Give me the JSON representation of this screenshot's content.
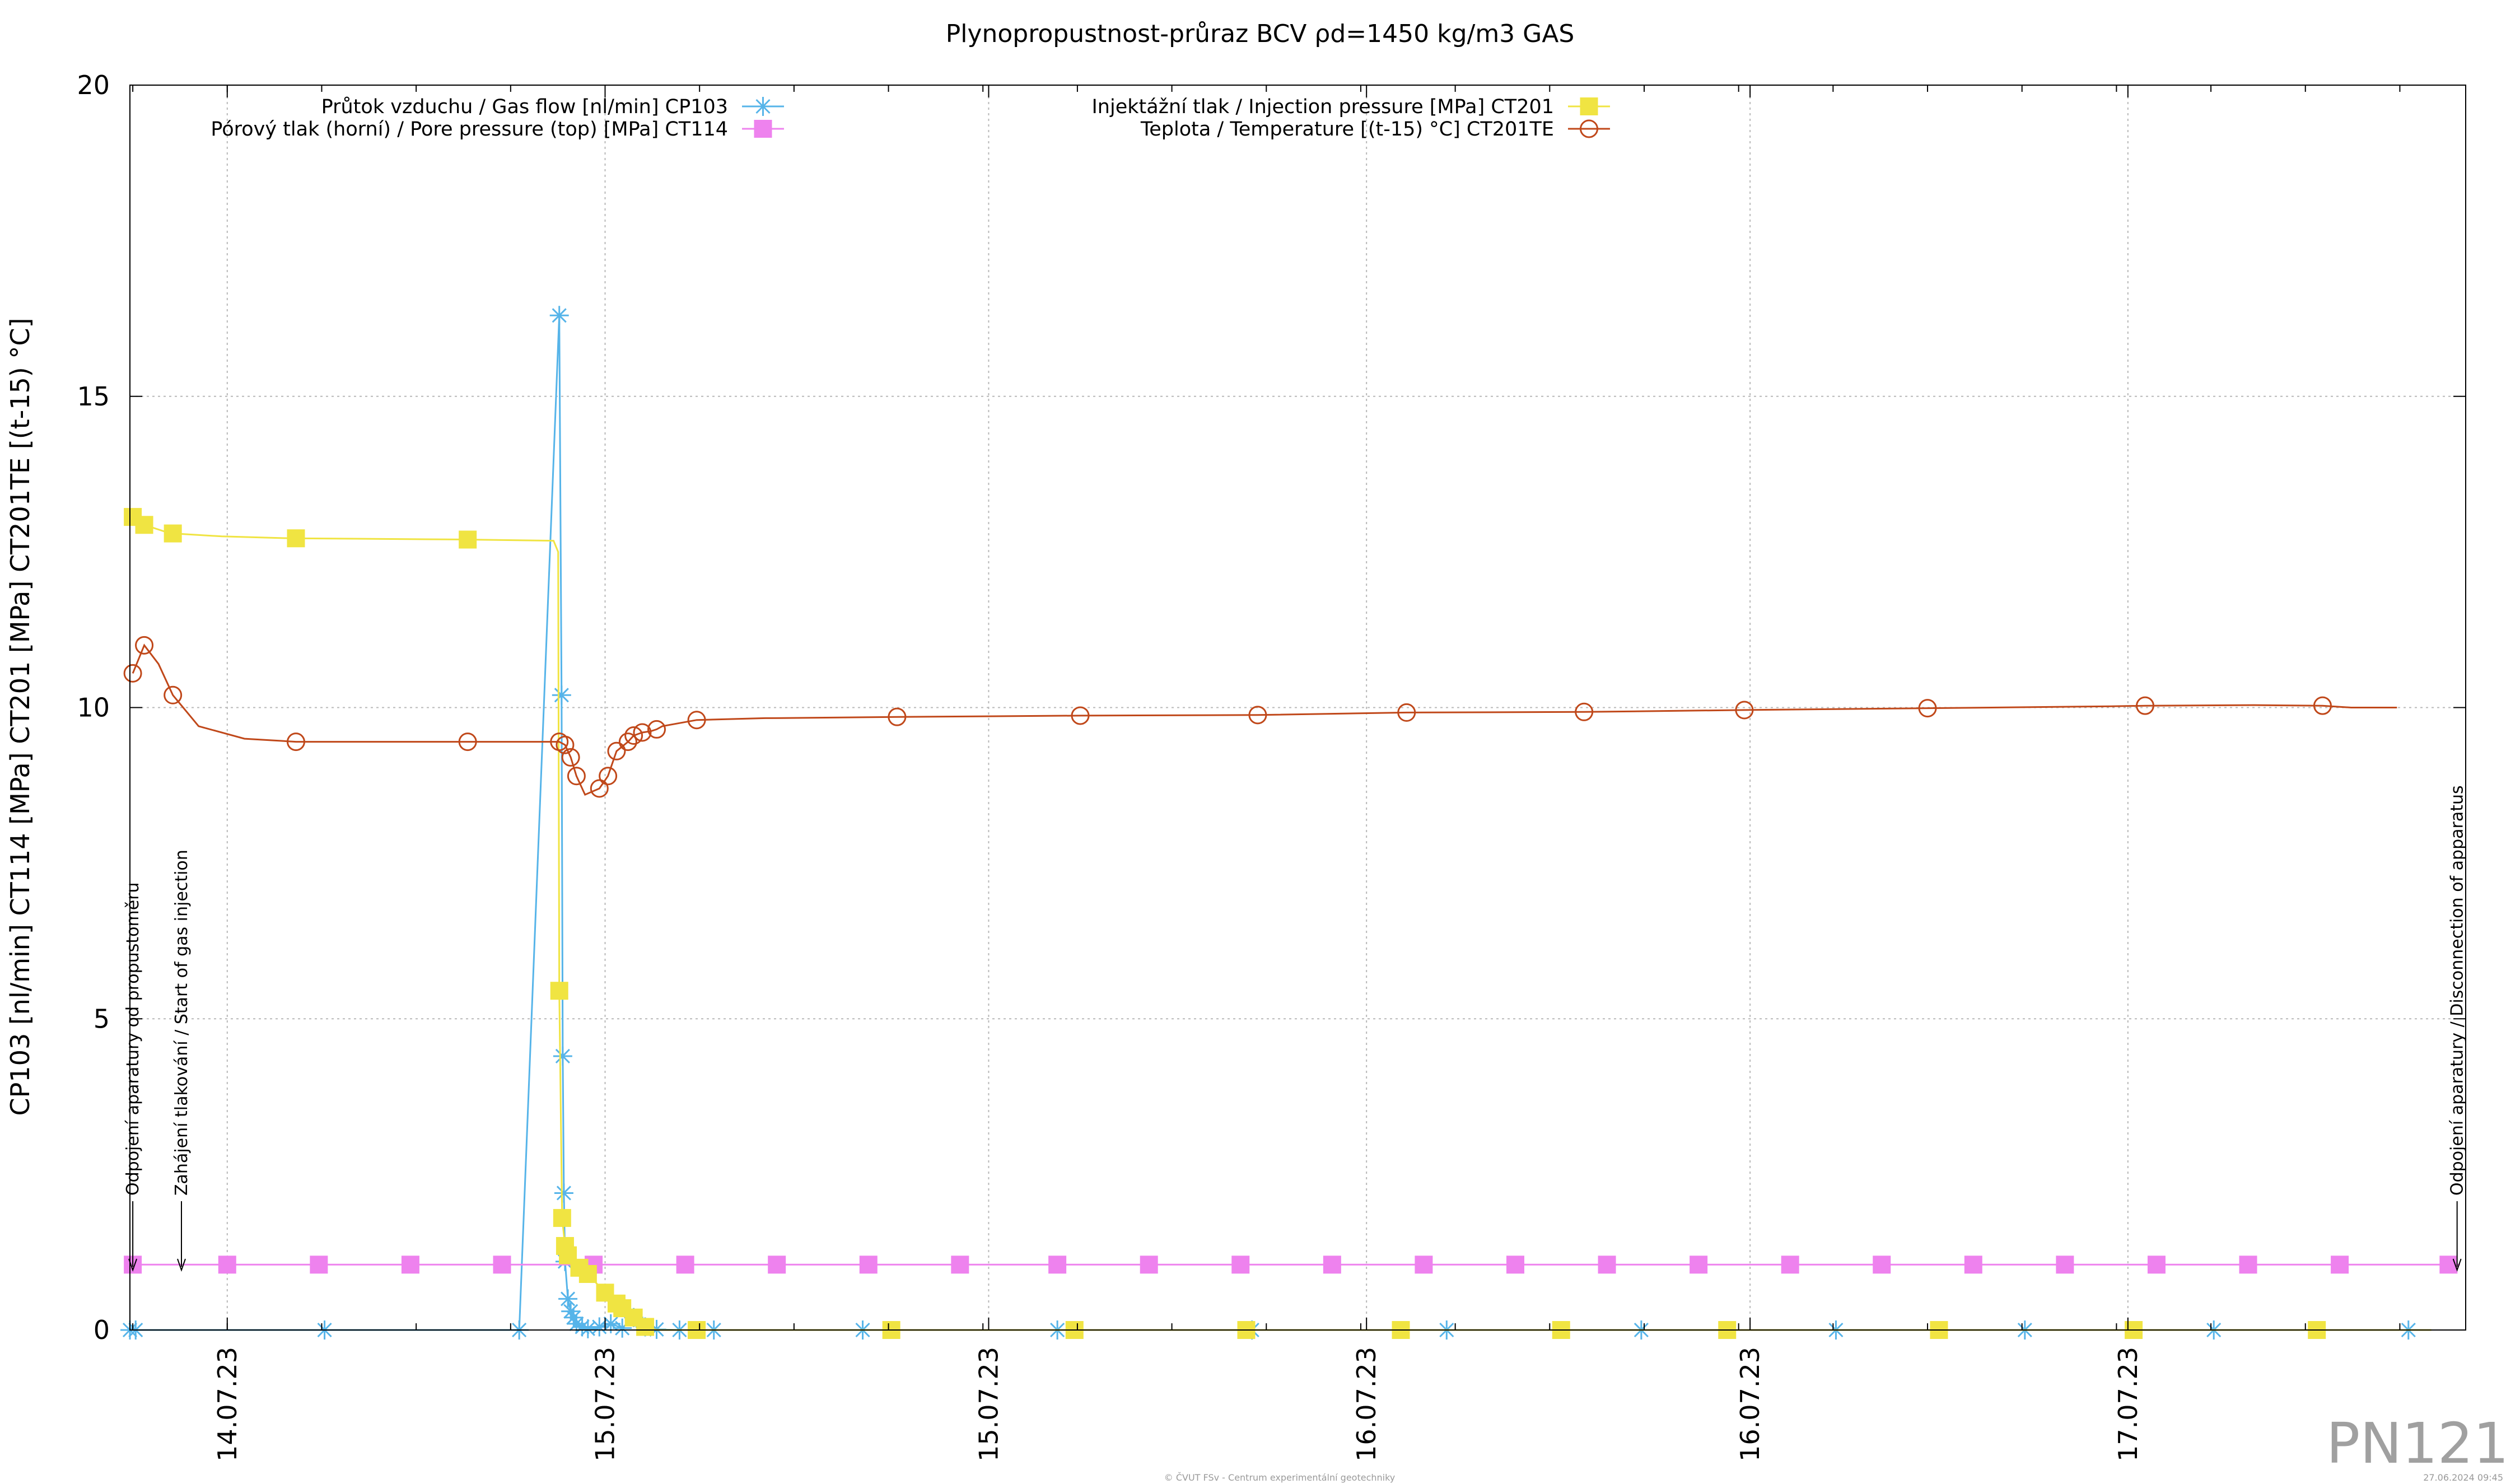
{
  "chart_data": {
    "type": "line",
    "title": "Plynopropustnost-průraz BCV ρd=1450 kg/m3 GAS",
    "ylabel": "CP103 [nl/min] CT114 [MPa] CT201 [MPa] CT201TE [(t-15) °C]",
    "ylim": [
      0,
      20
    ],
    "y_ticks": [
      "0",
      "5",
      "10",
      "15",
      "20"
    ],
    "xlim": [
      13.74,
      17.82
    ],
    "x_ticks": [
      {
        "x": 13.91,
        "label": "14.07.23"
      },
      {
        "x": 14.57,
        "label": "15.07.23"
      },
      {
        "x": 15.24,
        "label": "15.07.23"
      },
      {
        "x": 15.9,
        "label": "16.07.23"
      },
      {
        "x": 16.57,
        "label": "16.07.23"
      },
      {
        "x": 17.23,
        "label": "17.07.23"
      }
    ],
    "grid": true,
    "legend_position": "top",
    "series": [
      {
        "name": "Průtok vzduchu / Gas flow [nl/min] CP103",
        "color": "#56b4e9",
        "marker": "star",
        "x": [
          13.74,
          13.75,
          14.08,
          14.42,
          14.49,
          14.494,
          14.496,
          14.498,
          14.5,
          14.505,
          14.51,
          14.515,
          14.52,
          14.53,
          14.54,
          14.56,
          14.58,
          14.6,
          14.62,
          14.64,
          14.66,
          14.7,
          14.76,
          15.02,
          15.36,
          15.7,
          16.04,
          16.38,
          16.72,
          17.05,
          17.38,
          17.72
        ],
        "y": [
          0.0,
          0.0,
          0.0,
          0.0,
          16.3,
          10.2,
          4.4,
          2.2,
          1.1,
          0.5,
          0.3,
          0.2,
          0.1,
          0.05,
          0.02,
          0.05,
          0.1,
          0.03,
          0.2,
          0.05,
          0.01,
          0.0,
          0.0,
          0.0,
          0.0,
          0.0,
          0.0,
          0.0,
          0.0,
          0.0,
          0.0,
          0.0
        ]
      },
      {
        "name": "Pórový tlak (horní) / Pore pressure (top) [MPa] CT114",
        "color": "#ee82ee",
        "marker": "square",
        "x": [
          13.74,
          17.81
        ],
        "y": [
          1.05,
          1.05
        ],
        "markers_x": [
          13.745,
          13.91,
          14.07,
          14.23,
          14.39,
          14.55,
          14.71,
          14.87,
          15.03,
          15.19,
          15.36,
          15.52,
          15.68,
          15.84,
          16.0,
          16.16,
          16.32,
          16.48,
          16.64,
          16.8,
          16.96,
          17.12,
          17.28,
          17.44,
          17.6,
          17.79
        ]
      },
      {
        "name": "Injektážní tlak / Injection pressure [MPa] CT201",
        "color": "#f0e442",
        "marker": "square",
        "x": [
          13.74,
          13.76,
          13.81,
          13.9,
          14.02,
          14.32,
          14.48,
          14.488,
          14.49,
          14.495,
          14.5,
          14.505,
          14.51,
          14.525,
          14.54,
          14.56,
          14.58,
          14.6,
          14.62,
          14.64,
          14.66,
          14.7,
          14.76,
          15.08,
          15.4,
          15.68,
          15.96,
          16.26,
          16.54,
          16.86,
          17.25,
          17.57,
          17.76
        ],
        "y": [
          13.1,
          12.95,
          12.8,
          12.75,
          12.72,
          12.7,
          12.68,
          12.5,
          5.45,
          1.8,
          1.35,
          1.2,
          1.1,
          1.0,
          0.9,
          0.7,
          0.5,
          0.35,
          0.2,
          0.05,
          0.0,
          0.0,
          0.0,
          0.0,
          0.0,
          0.0,
          0.0,
          0.0,
          0.0,
          0.0,
          0.0,
          0.0,
          0.0
        ],
        "markers_x": [
          13.745,
          13.765,
          13.815,
          14.03,
          14.33,
          14.49,
          14.495,
          14.5,
          14.505,
          14.525,
          14.54,
          14.57,
          14.59,
          14.6,
          14.62,
          14.64,
          14.73,
          15.07,
          15.39,
          15.69,
          15.96,
          16.24,
          16.53,
          16.9,
          17.24,
          17.56
        ]
      },
      {
        "name": "Teplota / Temperature [(t-15) °C] CT201TE",
        "color": "#c0481a",
        "marker": "circle",
        "x": [
          13.745,
          13.765,
          13.79,
          13.815,
          13.86,
          13.94,
          14.03,
          14.15,
          14.33,
          14.42,
          14.49,
          14.5,
          14.51,
          14.52,
          14.535,
          14.56,
          14.575,
          14.59,
          14.61,
          14.62,
          14.635,
          14.65,
          14.66,
          14.67,
          14.73,
          14.85,
          14.86,
          15.08,
          15.4,
          15.71,
          15.97,
          16.28,
          16.56,
          16.88,
          17.2,
          17.26,
          17.45,
          17.57,
          17.62,
          17.7
        ],
        "y": [
          10.55,
          11.0,
          10.7,
          10.2,
          9.7,
          9.5,
          9.45,
          9.45,
          9.45,
          9.45,
          9.45,
          9.4,
          9.2,
          8.9,
          8.6,
          8.7,
          8.9,
          9.3,
          9.45,
          9.55,
          9.6,
          9.62,
          9.65,
          9.7,
          9.8,
          9.83,
          9.83,
          9.85,
          9.87,
          9.88,
          9.92,
          9.93,
          9.96,
          9.99,
          10.02,
          10.03,
          10.04,
          10.03,
          10.0,
          10.0
        ],
        "markers_x": [
          13.745,
          13.765,
          13.815,
          14.03,
          14.33,
          14.49,
          14.5,
          14.51,
          14.52,
          14.56,
          14.575,
          14.59,
          14.61,
          14.62,
          14.635,
          14.66,
          14.73,
          15.08,
          15.4,
          15.71,
          15.97,
          16.28,
          16.56,
          16.88,
          17.26,
          17.57
        ]
      }
    ],
    "annotations": [
      {
        "x": 13.745,
        "text": "Odpojení aparatury od propustoměru"
      },
      {
        "x": 13.83,
        "text": "Zahájení tlakování / Start of gas injection"
      },
      {
        "x": 17.805,
        "text": "Odpojení aparatury / Disconnection of apparatus"
      }
    ]
  },
  "watermark": "PN121",
  "footer": {
    "credit": "© ČVUT FSv - Centrum experimentální geotechniky",
    "date": "27.06.2024 09:45"
  }
}
